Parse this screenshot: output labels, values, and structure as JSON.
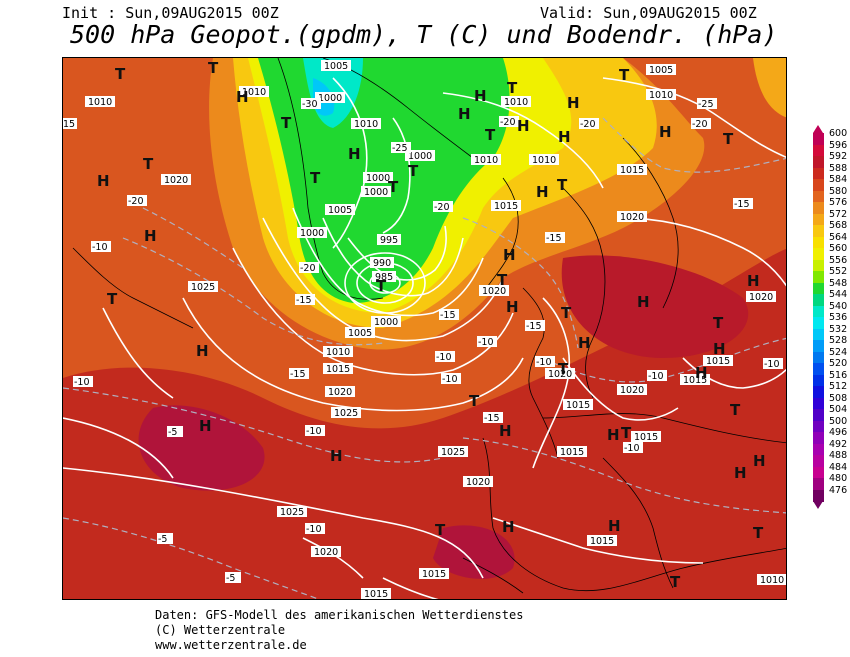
{
  "header": {
    "init": "Init : Sun,09AUG2015 00Z",
    "valid": "Valid: Sun,09AUG2015 00Z",
    "title": "500 hPa Geopot.(gpdm), T (C) und Bodendr. (hPa)"
  },
  "legend": {
    "values": [
      "600",
      "596",
      "592",
      "588",
      "584",
      "580",
      "576",
      "572",
      "568",
      "564",
      "560",
      "556",
      "552",
      "548",
      "544",
      "540",
      "536",
      "532",
      "528",
      "524",
      "520",
      "516",
      "512",
      "508",
      "504",
      "500",
      "496",
      "492",
      "488",
      "484",
      "480",
      "476"
    ],
    "colors": [
      "#c00055",
      "#d40a3a",
      "#c0162a",
      "#cc2a1e",
      "#d8461c",
      "#e2641f",
      "#ec8a1c",
      "#f4a818",
      "#f8c810",
      "#f8e000",
      "#f0f000",
      "#c8f000",
      "#80e800",
      "#20d830",
      "#00d880",
      "#00e8c8",
      "#00e8f0",
      "#00c8f8",
      "#009cf8",
      "#0078f0",
      "#0050f0",
      "#0030e8",
      "#1010e0",
      "#3000d8",
      "#5000c8",
      "#7000c0",
      "#9000b8",
      "#a800b0",
      "#b800a0",
      "#c80090",
      "#a00080",
      "#700060"
    ]
  },
  "map_labels": {
    "isobars": [
      "1005",
      "1010",
      "1015",
      "1020",
      "1025",
      "1000",
      "995",
      "990",
      "985"
    ],
    "temps": [
      "-5",
      "-10",
      "-15",
      "-20",
      "-25",
      "-30"
    ],
    "pressure_centers": [
      "H",
      "T"
    ]
  },
  "footer": {
    "line1": "Daten: GFS-Modell des amerikanischen Wetterdienstes",
    "line2": "(C) Wetterzentrale",
    "line3": "www.wetterzentrale.de"
  }
}
